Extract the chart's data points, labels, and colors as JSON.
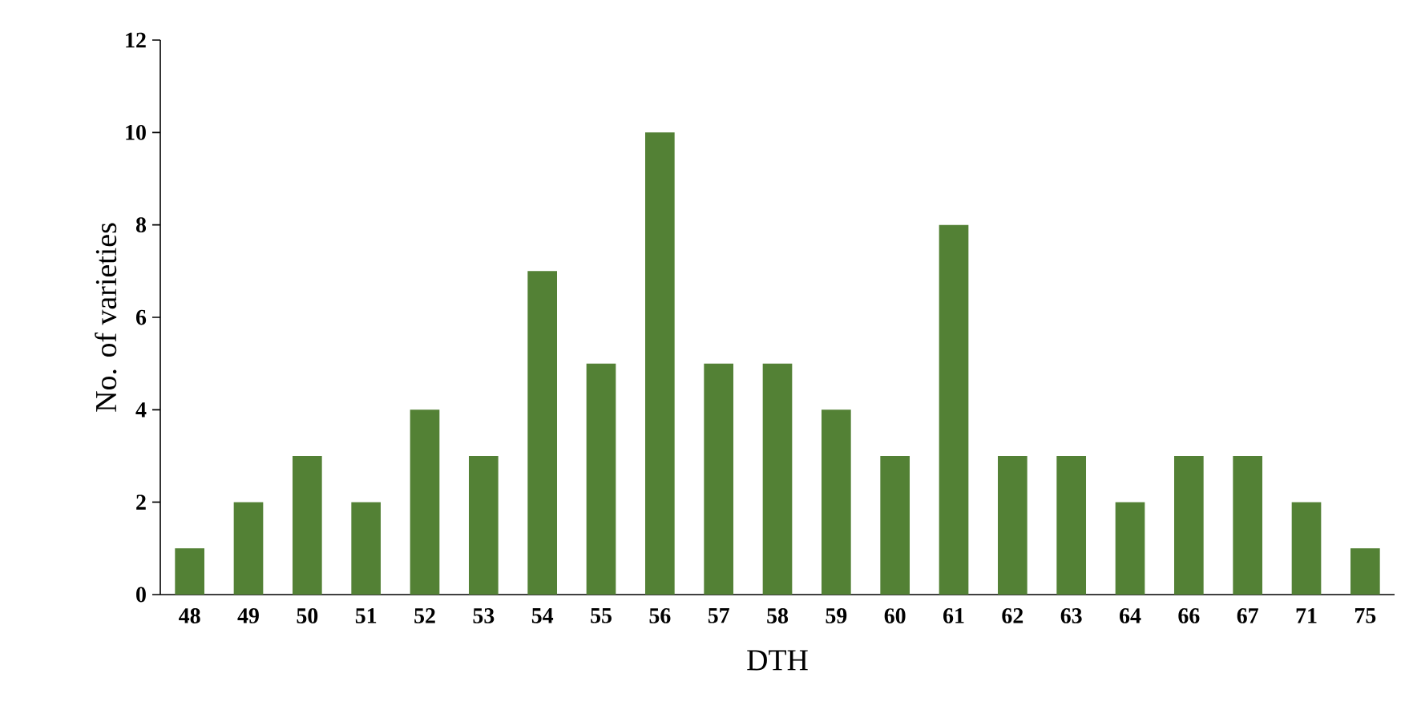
{
  "chart_data": {
    "type": "bar",
    "xlabel": "DTH",
    "ylabel": "No. of varieties",
    "categories": [
      "48",
      "49",
      "50",
      "51",
      "52",
      "53",
      "54",
      "55",
      "56",
      "57",
      "58",
      "59",
      "60",
      "61",
      "62",
      "63",
      "64",
      "66",
      "67",
      "71",
      "75"
    ],
    "values": [
      1,
      2,
      3,
      2,
      4,
      3,
      7,
      5,
      10,
      5,
      5,
      4,
      3,
      8,
      3,
      3,
      2,
      3,
      3,
      2,
      1
    ],
    "color": "#538135",
    "ylim": [
      0,
      12
    ],
    "yticks": [
      0,
      2,
      4,
      6,
      8,
      10,
      12
    ],
    "grid": false
  }
}
